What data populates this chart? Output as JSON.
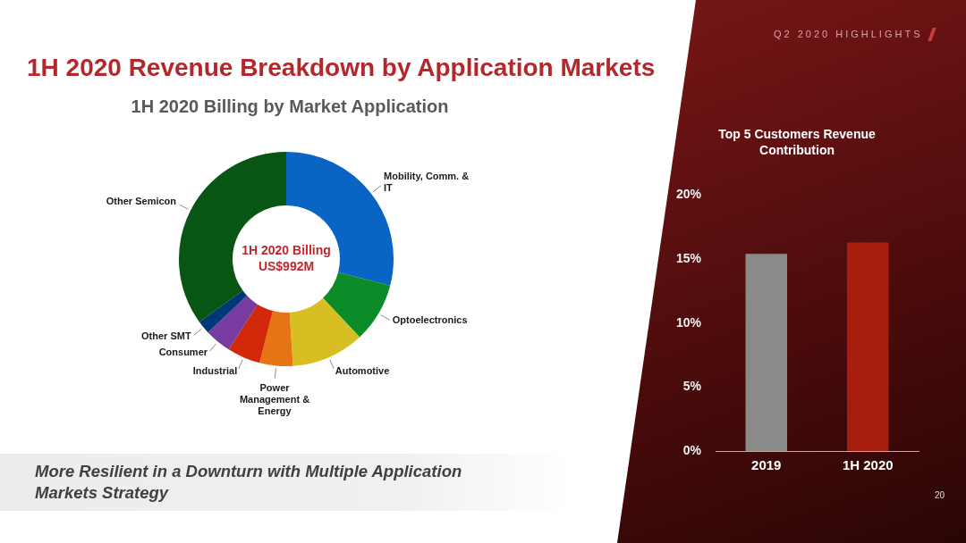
{
  "chart_data": [
    {
      "type": "donut",
      "title": "1H 2020 Revenue Breakdown by Application Markets",
      "subtitle": "1H 2020 Billing by Market Application",
      "categories": [
        "Mobility, Comm. & IT",
        "Optoelectronics",
        "Automotive",
        "Power Management & Energy",
        "Industrial",
        "Consumer",
        "Other SMT",
        "Other Semicon"
      ],
      "values": [
        29,
        9,
        11,
        5,
        5,
        4,
        2,
        35
      ],
      "colors": [
        "#0a64c3",
        "#0c8c28",
        "#d7be23",
        "#e67314",
        "#d2280a",
        "#783ca0",
        "#003778",
        "#085514"
      ],
      "annotations": [
        "1H 2020 Billing US$992M",
        "More Resilient in a Downturn with Multiple Application Markets Strategy"
      ]
    },
    {
      "type": "bar",
      "title": "Top 5 Customers Revenue Contribution",
      "categories": [
        "2019",
        "1H 2020"
      ],
      "values": [
        15.4,
        16.3
      ],
      "colors": [
        "#8a8a8a",
        "#a81e0e"
      ],
      "ylim": [
        0,
        20
      ],
      "yticks": [
        {
          "value": 0,
          "label": "0%"
        },
        {
          "value": 5,
          "label": "5%"
        },
        {
          "value": 10,
          "label": "10%"
        },
        {
          "value": 15,
          "label": "15%"
        },
        {
          "value": 20,
          "label": "20%"
        }
      ],
      "annotations": [
        "Q2 2020 HIGHLIGHTS",
        "20"
      ]
    }
  ]
}
